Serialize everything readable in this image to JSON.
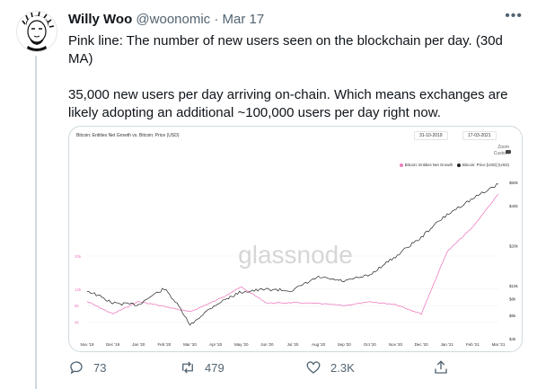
{
  "tweet": {
    "author_name": "Willy Woo",
    "handle": "@woonomic",
    "separator": "·",
    "date": "Mar 17",
    "paragraphs": [
      "Pink line: The number of new users seen on the blockchain per day. (30d MA)",
      "35,000 new users per day arriving on-chain. Which means exchanges are likely adopting an additional ~100,000 users per day right now."
    ],
    "more_icon": "more-horizontal-icon"
  },
  "chart": {
    "title": "Bitcoin: Entities Net Growth vs. Bitcoin: Price (USD)",
    "date_start": "31-10-2019",
    "date_end": "17-03-2021",
    "zoom_label": "Zoom",
    "zoom_value": "Custom",
    "watermark": "glassnode",
    "legend": [
      {
        "label": "Bitcoin: Entities Net Growth",
        "color": "#ee7ec0"
      },
      {
        "label": "Bitcoin: Price [USD] (USD)",
        "color": "#222222"
      }
    ]
  },
  "chart_data": {
    "type": "line",
    "title": "Bitcoin: Entities Net Growth vs. Bitcoin: Price (USD)",
    "x": [
      "Nov '19",
      "Dec '19",
      "Jan '20",
      "Feb '20",
      "Mar '20",
      "Apr '20",
      "May '20",
      "Jun '20",
      "Jul '20",
      "Aug '20",
      "Sep '20",
      "Oct '20",
      "Nov '20",
      "Dec '20",
      "Jan '21",
      "Feb '21",
      "Mar '21"
    ],
    "y_left_ticks": [
      "4k",
      "8k",
      "12k",
      "20k"
    ],
    "y_right_ticks": [
      "$4k",
      "$6k",
      "$8k",
      "$10k",
      "$20k",
      "$40k",
      "$60k"
    ],
    "series": [
      {
        "name": "Bitcoin: Entities Net Growth",
        "color": "#ee7ec0",
        "values": [
          9000,
          6000,
          9000,
          7800,
          6500,
          9200,
          12500,
          8600,
          8700,
          8500,
          8000,
          8900,
          8300,
          6000,
          21000,
          27000,
          35000
        ]
      },
      {
        "name": "Bitcoin: Price [USD] (USD)",
        "color": "#222222",
        "values": [
          9200,
          7400,
          7200,
          9500,
          5000,
          7200,
          9000,
          9400,
          9200,
          11600,
          10800,
          12000,
          16500,
          23000,
          34000,
          45000,
          58000
        ]
      }
    ]
  },
  "actions": {
    "reply_count": "73",
    "retweet_count": "479",
    "like_count": "2.3K"
  }
}
